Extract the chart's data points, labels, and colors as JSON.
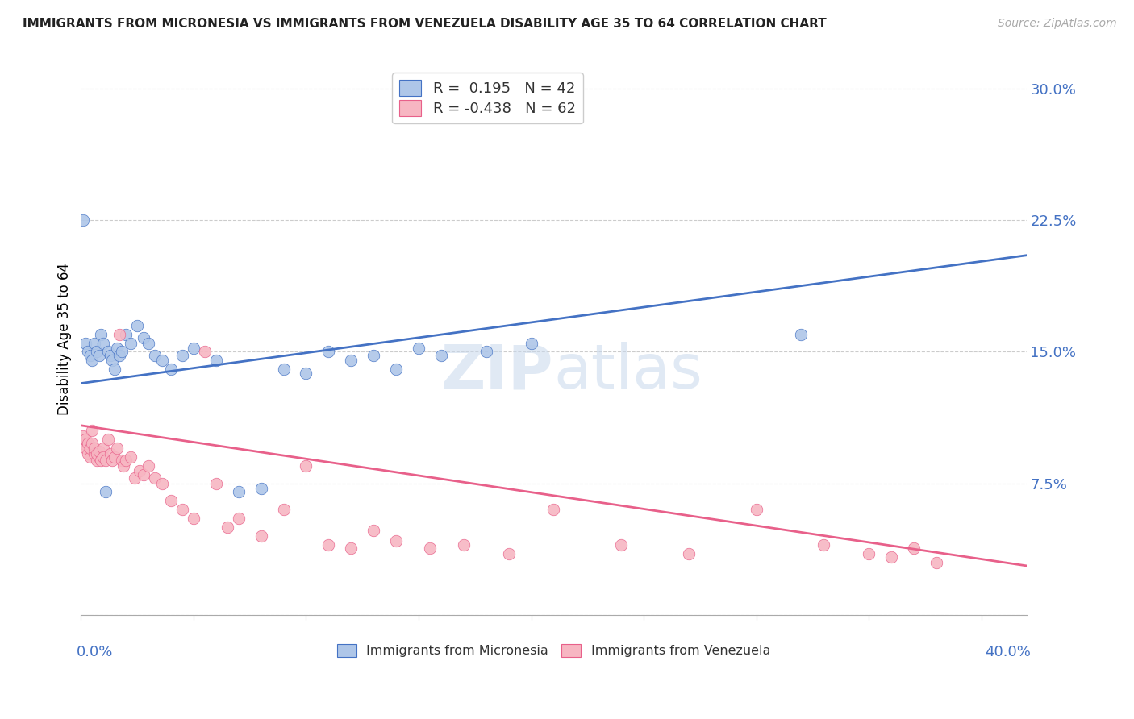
{
  "title": "IMMIGRANTS FROM MICRONESIA VS IMMIGRANTS FROM VENEZUELA DISABILITY AGE 35 TO 64 CORRELATION CHART",
  "source": "Source: ZipAtlas.com",
  "ylabel": "Disability Age 35 to 64",
  "color_micronesia": "#aec6e8",
  "color_venezuela": "#f7b6c2",
  "line_color_micronesia": "#4472c4",
  "line_color_venezuela": "#e8608a",
  "tick_color": "#4472c4",
  "xmin": 0.0,
  "xmax": 0.42,
  "ymin": 0.0,
  "ymax": 0.315,
  "ytick_vals": [
    0.0,
    0.075,
    0.15,
    0.225,
    0.3
  ],
  "ytick_labels": [
    "",
    "7.5%",
    "15.0%",
    "22.5%",
    "30.0%"
  ],
  "mic_line_x0": 0.0,
  "mic_line_y0": 0.132,
  "mic_line_x1": 0.42,
  "mic_line_y1": 0.205,
  "ven_line_x0": 0.0,
  "ven_line_y0": 0.108,
  "ven_line_x1": 0.42,
  "ven_line_y1": 0.028,
  "mic_scatter_x": [
    0.001,
    0.002,
    0.003,
    0.004,
    0.005,
    0.006,
    0.007,
    0.008,
    0.009,
    0.01,
    0.011,
    0.012,
    0.013,
    0.014,
    0.015,
    0.016,
    0.017,
    0.018,
    0.02,
    0.022,
    0.025,
    0.028,
    0.03,
    0.033,
    0.036,
    0.04,
    0.045,
    0.05,
    0.06,
    0.07,
    0.08,
    0.09,
    0.1,
    0.11,
    0.12,
    0.13,
    0.14,
    0.15,
    0.16,
    0.18,
    0.2,
    0.32
  ],
  "mic_scatter_y": [
    0.225,
    0.155,
    0.15,
    0.148,
    0.145,
    0.155,
    0.15,
    0.148,
    0.16,
    0.155,
    0.07,
    0.15,
    0.148,
    0.145,
    0.14,
    0.152,
    0.148,
    0.15,
    0.16,
    0.155,
    0.165,
    0.158,
    0.155,
    0.148,
    0.145,
    0.14,
    0.148,
    0.152,
    0.145,
    0.07,
    0.072,
    0.14,
    0.138,
    0.15,
    0.145,
    0.148,
    0.14,
    0.152,
    0.148,
    0.15,
    0.155,
    0.16
  ],
  "ven_scatter_x": [
    0.001,
    0.001,
    0.002,
    0.002,
    0.003,
    0.003,
    0.004,
    0.004,
    0.005,
    0.005,
    0.006,
    0.006,
    0.007,
    0.007,
    0.008,
    0.008,
    0.009,
    0.01,
    0.01,
    0.011,
    0.012,
    0.013,
    0.014,
    0.015,
    0.016,
    0.017,
    0.018,
    0.019,
    0.02,
    0.022,
    0.024,
    0.026,
    0.028,
    0.03,
    0.033,
    0.036,
    0.04,
    0.045,
    0.05,
    0.055,
    0.06,
    0.065,
    0.07,
    0.08,
    0.09,
    0.1,
    0.11,
    0.12,
    0.13,
    0.14,
    0.155,
    0.17,
    0.19,
    0.21,
    0.24,
    0.27,
    0.3,
    0.33,
    0.35,
    0.36,
    0.37,
    0.38
  ],
  "ven_scatter_y": [
    0.102,
    0.098,
    0.095,
    0.1,
    0.092,
    0.098,
    0.09,
    0.095,
    0.105,
    0.098,
    0.092,
    0.095,
    0.088,
    0.092,
    0.09,
    0.093,
    0.088,
    0.095,
    0.09,
    0.088,
    0.1,
    0.092,
    0.088,
    0.09,
    0.095,
    0.16,
    0.088,
    0.085,
    0.088,
    0.09,
    0.078,
    0.082,
    0.08,
    0.085,
    0.078,
    0.075,
    0.065,
    0.06,
    0.055,
    0.15,
    0.075,
    0.05,
    0.055,
    0.045,
    0.06,
    0.085,
    0.04,
    0.038,
    0.048,
    0.042,
    0.038,
    0.04,
    0.035,
    0.06,
    0.04,
    0.035,
    0.06,
    0.04,
    0.035,
    0.033,
    0.038,
    0.03
  ]
}
